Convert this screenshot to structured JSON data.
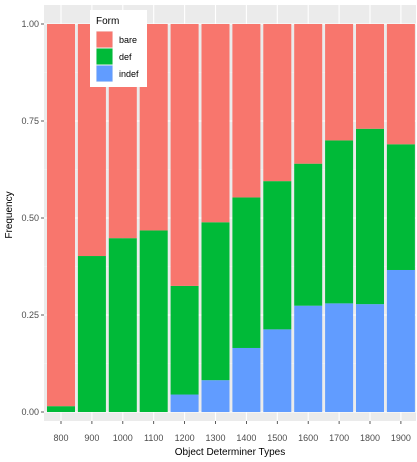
{
  "chart_data": {
    "type": "bar",
    "stacked": true,
    "title": "",
    "xlabel": "Object Determiner Types",
    "ylabel": "Frequency",
    "ylim": [
      0,
      1.0
    ],
    "yticks": [
      0.0,
      0.25,
      0.5,
      0.75,
      1.0
    ],
    "ytick_labels": [
      "0.00",
      "0.25",
      "0.50",
      "0.75",
      "1.00"
    ],
    "grid": true,
    "legend": {
      "title": "Form",
      "placement": "top-left-inside"
    },
    "categories": [
      "800",
      "900",
      "1000",
      "1100",
      "1200",
      "1300",
      "1400",
      "1500",
      "1600",
      "1700",
      "1800",
      "1900"
    ],
    "series": [
      {
        "name": "bare",
        "color": "#F8766D",
        "values": [
          0.985,
          0.598,
          0.552,
          0.532,
          0.675,
          0.511,
          0.447,
          0.405,
          0.36,
          0.3,
          0.27,
          0.31
        ]
      },
      {
        "name": "def",
        "color": "#00BA38",
        "values": [
          0.015,
          0.402,
          0.448,
          0.468,
          0.28,
          0.407,
          0.388,
          0.382,
          0.366,
          0.42,
          0.452,
          0.324
        ]
      },
      {
        "name": "indef",
        "color": "#619CFF",
        "values": [
          0.0,
          0.0,
          0.0,
          0.0,
          0.045,
          0.082,
          0.165,
          0.213,
          0.274,
          0.28,
          0.278,
          0.366
        ]
      }
    ]
  }
}
